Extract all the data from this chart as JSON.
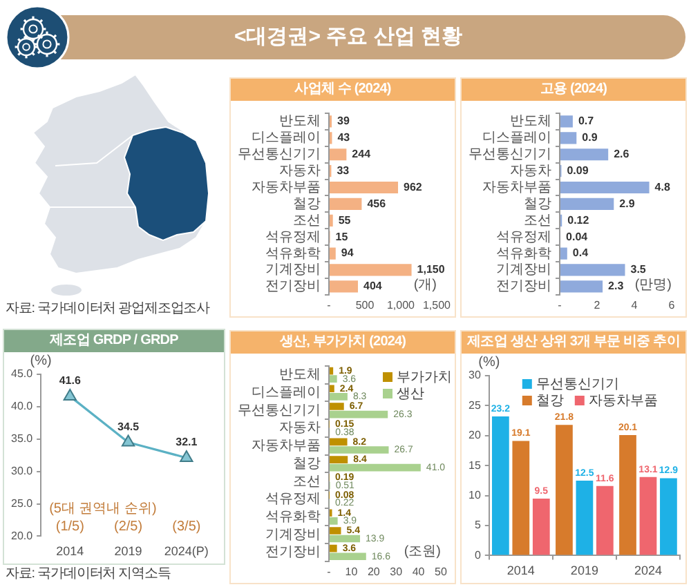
{
  "chart_data": [
    {
      "type": "other",
      "title": "<대경권> 주요 산업 현황",
      "annotations": [
        "자료: 국가데이터처 광업제조업조사"
      ]
    },
    {
      "type": "bar",
      "orientation": "horizontal",
      "title": "사업체 수 (2024)",
      "xlabel": "(개)",
      "categories": [
        "반도체",
        "디스플레이",
        "무선통신기기",
        "자동차",
        "자동차부품",
        "철강",
        "조선",
        "석유정제",
        "석유화학",
        "기계장비",
        "전기장비"
      ],
      "values": [
        39,
        43,
        244,
        33,
        962,
        456,
        55,
        15,
        94,
        1150,
        404
      ],
      "color": "#f4b183",
      "value_labels": [
        "39",
        "43",
        "244",
        "33",
        "962",
        "456",
        "55",
        "15",
        "94",
        "1,150",
        "404"
      ],
      "xlim": [
        0,
        1500
      ],
      "xticks": [
        {
          "value": 0,
          "label": "-"
        },
        500,
        {
          "value": 1000,
          "label": "1,000"
        },
        {
          "value": 1500,
          "label": "1,500"
        }
      ]
    },
    {
      "type": "bar",
      "orientation": "horizontal",
      "title": "고용 (2024)",
      "xlabel": "(만명)",
      "categories": [
        "반도체",
        "디스플레이",
        "무선통신기기",
        "자동차",
        "자동차부품",
        "철강",
        "조선",
        "석유정제",
        "석유화학",
        "기계장비",
        "전기장비"
      ],
      "values": [
        0.7,
        0.9,
        2.6,
        0.09,
        4.8,
        2.9,
        0.12,
        0.04,
        0.4,
        3.5,
        2.3
      ],
      "color": "#8faadc",
      "data_labels": true,
      "xlim": [
        0,
        6
      ],
      "xticks": [
        {
          "value": 0,
          "label": "-"
        },
        2,
        4,
        6
      ]
    },
    {
      "type": "line",
      "title": "제조업 GRDP / GRDP",
      "ylabel": "(%)",
      "categories": [
        "2014",
        "2019",
        "2024(P)"
      ],
      "values": [
        41.6,
        34.5,
        32.1
      ],
      "color": "#5bb1c4",
      "marker": "triangle",
      "data_labels": true,
      "ylim": [
        20,
        45
      ],
      "yticks": [
        {
          "value": 20,
          "label": "20.0"
        },
        {
          "value": 25,
          "label": "25.0"
        },
        {
          "value": 30,
          "label": "30.0"
        },
        {
          "value": 35,
          "label": "35.0"
        },
        {
          "value": 40,
          "label": "40.0"
        },
        {
          "value": 45,
          "label": "45.0"
        }
      ],
      "annotations": [
        "(5대 권역내 순위)",
        "(1/5)",
        "(2/5)",
        "(3/5)",
        "자료: 국가데이터처 지역소득"
      ]
    },
    {
      "type": "bar",
      "orientation": "horizontal",
      "title": "생산, 부가가치 (2024)",
      "xlabel": "(조원)",
      "categories": [
        "반도체",
        "디스플레이",
        "무선통신기기",
        "자동차",
        "자동차부품",
        "철강",
        "조선",
        "석유정제",
        "석유화학",
        "기계장비",
        "전기장비"
      ],
      "series": [
        {
          "name": "부가가치",
          "color": "#bf9000",
          "values": [
            1.9,
            2.4,
            6.7,
            0.15,
            8.2,
            8.4,
            0.19,
            0.08,
            1.4,
            5.4,
            3.6
          ],
          "value_labels": [
            "1.9",
            "2.4",
            "6.7",
            "0.15",
            "8.2",
            "8.4",
            "0.19",
            "0.08",
            "1.4",
            "5.4",
            "3.6"
          ]
        },
        {
          "name": "생산",
          "color": "#a9d18e",
          "values": [
            3.6,
            8.3,
            26.3,
            0.38,
            26.7,
            41.0,
            0.51,
            0.22,
            3.9,
            13.9,
            16.6
          ],
          "value_labels": [
            "3.6",
            "8.3",
            "26.3",
            "0.38",
            "26.7",
            "41.0",
            "0.51",
            "0.22",
            "3.9",
            "13.9",
            "16.6"
          ]
        }
      ],
      "xlim": [
        0,
        50
      ],
      "xticks": [
        {
          "value": 0,
          "label": "-"
        },
        10,
        20,
        30,
        40,
        50
      ],
      "legend": "top right"
    },
    {
      "type": "bar",
      "title": "제조업 생산 상위 3개 부문 비중 추이",
      "ylabel": "(%)",
      "categories": [
        "2014",
        "2019",
        "2024"
      ],
      "series": [
        {
          "name": "무선통신기기",
          "color": "#1eb1e6",
          "values": [
            23.2,
            12.5,
            12.9
          ]
        },
        {
          "name": "철강",
          "color": "#d77b2c",
          "values": [
            19.1,
            21.8,
            20.1
          ]
        },
        {
          "name": "자동차부품",
          "color": "#ef666e",
          "values": [
            9.5,
            11.6,
            13.1
          ]
        }
      ],
      "ylim": [
        0,
        30
      ],
      "yticks": [
        0,
        5,
        10,
        15,
        20,
        25,
        30
      ],
      "legend": "top",
      "data_labels": true
    }
  ]
}
